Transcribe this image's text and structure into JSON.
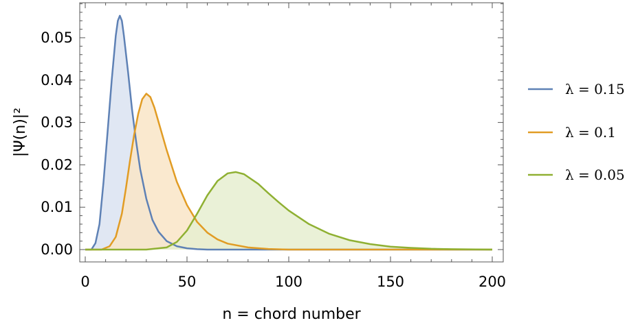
{
  "chart_data": {
    "type": "area",
    "xlabel": "n = chord number",
    "ylabel": "|Ψ(n)|²",
    "xlim": [
      0,
      205
    ],
    "ylim": [
      -0.003,
      0.059
    ],
    "xticks": [
      0,
      50,
      100,
      150,
      200
    ],
    "xtick_labels": [
      "0",
      "50",
      "100",
      "150",
      "200"
    ],
    "yticks": [
      0.0,
      0.01,
      0.02,
      0.03,
      0.04,
      0.05
    ],
    "ytick_labels": [
      "0.00",
      "0.01",
      "0.02",
      "0.03",
      "0.04",
      "0.05"
    ],
    "legend_position": "right",
    "grid": false,
    "series": [
      {
        "name": "λ = 0.15",
        "color": "#5e81b5",
        "fill": "#dbe3f1",
        "x": [
          3,
          5,
          7,
          9,
          11,
          13,
          15,
          16,
          17,
          18,
          19,
          21,
          23,
          25,
          27,
          30,
          33,
          36,
          40,
          45,
          50,
          55,
          60,
          70,
          80,
          100,
          200
        ],
        "y": [
          0.0,
          0.0015,
          0.006,
          0.016,
          0.028,
          0.04,
          0.0505,
          0.054,
          0.0552,
          0.054,
          0.0505,
          0.042,
          0.033,
          0.0255,
          0.019,
          0.012,
          0.007,
          0.0042,
          0.002,
          0.0008,
          0.0003,
          0.0001,
          0.0,
          0.0,
          0.0,
          0.0,
          0.0
        ]
      },
      {
        "name": "λ = 0.1",
        "color": "#e19c24",
        "fill": "#f9e5c7",
        "x": [
          8,
          12,
          15,
          18,
          20,
          22,
          24,
          26,
          28,
          30,
          32,
          34,
          37,
          40,
          45,
          50,
          55,
          60,
          65,
          70,
          80,
          90,
          100,
          120,
          150,
          200
        ],
        "y": [
          0.0,
          0.0008,
          0.003,
          0.0085,
          0.0145,
          0.021,
          0.027,
          0.032,
          0.0355,
          0.0368,
          0.036,
          0.0335,
          0.0285,
          0.0235,
          0.016,
          0.0105,
          0.0065,
          0.004,
          0.0024,
          0.0014,
          0.0005,
          0.00015,
          0.0,
          0.0,
          0.0,
          0.0
        ]
      },
      {
        "name": "λ = 0.05",
        "color": "#8fb032",
        "fill": "#e6eed0",
        "x": [
          30,
          40,
          45,
          50,
          55,
          60,
          65,
          70,
          74,
          78,
          85,
          90,
          95,
          100,
          110,
          120,
          130,
          140,
          150,
          160,
          170,
          180,
          200
        ],
        "y": [
          0.0,
          0.0005,
          0.0018,
          0.0045,
          0.0085,
          0.0128,
          0.0162,
          0.018,
          0.0183,
          0.0178,
          0.0155,
          0.0133,
          0.0112,
          0.0092,
          0.006,
          0.0037,
          0.0022,
          0.0013,
          0.0007,
          0.0004,
          0.0002,
          0.0001,
          0.0
        ]
      }
    ]
  }
}
